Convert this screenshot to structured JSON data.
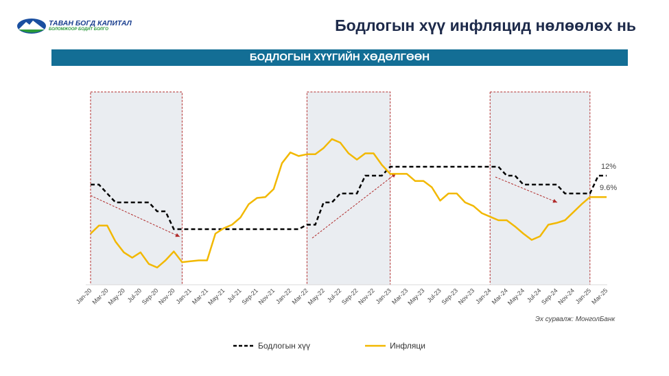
{
  "logo": {
    "name": "ТАВАН БОГД КАПИТАЛ",
    "tagline": "БОЛОМЖООР БОДИТ БОЛГО"
  },
  "header": {
    "title": "Бодлогын хүү инфляцид нөлөөлөх нь"
  },
  "banner": {
    "label": "БОДЛОГЫН ХҮҮГИЙН ХӨДӨЛГӨӨН"
  },
  "source": "Эх сурвалж: МонголБанк",
  "colors": {
    "policy": "#000000",
    "inflation": "#f2b800",
    "banner": "#136e95",
    "highlight": "#e6eaef",
    "arrow": "#b02a2a"
  },
  "chart_data": {
    "type": "line",
    "title": "БОДЛОГЫН ХҮҮГИЙН ХӨДӨЛГӨӨН",
    "x_start": "Jan-20",
    "x_end": "Mar-25",
    "frequency": "monthly",
    "tick_labels": [
      "Jan-20",
      "Mar-20",
      "May-20",
      "Jul-20",
      "Sep-20",
      "Nov-20",
      "Jan-21",
      "Mar-21",
      "May-21",
      "Jul-21",
      "Sep-21",
      "Nov-21",
      "Jan-22",
      "Mar-22",
      "May-22",
      "Jul-22",
      "Sep-22",
      "Nov-22",
      "Jan-23",
      "Mar-23",
      "May-23",
      "Jul-23",
      "Sep-23",
      "Nov-23",
      "Jan-24",
      "Mar-24",
      "May-24",
      "Jul-24",
      "Sep-24",
      "Nov-24",
      "Jan-25",
      "Mar-25"
    ],
    "ylim": [
      0,
      16.5
    ],
    "series": [
      {
        "name": "Бодлогын хүү",
        "style": "dashed",
        "values": [
          11,
          11,
          10,
          9,
          9,
          9,
          9,
          9,
          8,
          8,
          6,
          6,
          6,
          6,
          6,
          6,
          6,
          6,
          6,
          6,
          6,
          6,
          6,
          6,
          6,
          6,
          6.5,
          6.5,
          9,
          9,
          10,
          10,
          10,
          12,
          12,
          12,
          13,
          13,
          13,
          13,
          13,
          13,
          13,
          13,
          13,
          13,
          13,
          13,
          13,
          13,
          12,
          12,
          11,
          11,
          11,
          11,
          11,
          10,
          10,
          10,
          10,
          12,
          12
        ]
      },
      {
        "name": "Инфляци",
        "style": "solid",
        "values": [
          5.5,
          6.4,
          6.4,
          4.6,
          3.4,
          2.8,
          3.4,
          2.1,
          1.7,
          2.5,
          3.5,
          2.3,
          2.4,
          2.5,
          2.5,
          5.5,
          6.1,
          6.5,
          7.3,
          8.8,
          9.5,
          9.6,
          10.5,
          13.4,
          14.6,
          14.2,
          14.4,
          14.4,
          15.1,
          16.1,
          15.7,
          14.5,
          13.8,
          14.5,
          14.5,
          13.2,
          12.2,
          12.2,
          12.2,
          11.4,
          11.4,
          10.7,
          9.2,
          10,
          10,
          9,
          8.6,
          7.8,
          7.4,
          7,
          7,
          6.3,
          5.5,
          4.8,
          5.2,
          6.5,
          6.7,
          7,
          7.9,
          8.8,
          9.6,
          9.6,
          9.6
        ]
      }
    ],
    "annotations": {
      "policy_end": "12%",
      "inflation_end": "9.6%"
    },
    "highlight_periods": [
      [
        "Jan-20",
        "Dec-20"
      ],
      [
        "Mar-22",
        "Jan-23"
      ],
      [
        "Jan-24",
        "Jan-25"
      ]
    ],
    "legend": "bottom"
  }
}
